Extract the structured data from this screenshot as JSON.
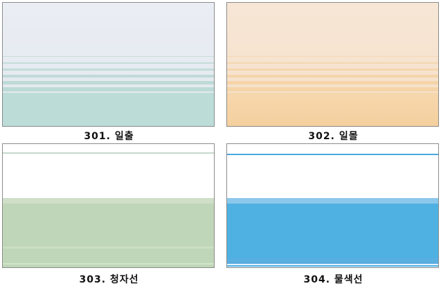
{
  "swatches": [
    {
      "label": "301. 일출",
      "top_color": "#e6ecf2",
      "bottom_color": "#bcdcd8"
    },
    {
      "label": "302. 일몰",
      "top_color": "#f6e4d0",
      "bottom_color": "#f5d3a5"
    },
    {
      "label": "303. 청자선",
      "top_color": "#ffffff",
      "bottom_color": "#c0d6b8"
    },
    {
      "label": "304. 물색선",
      "top_color": "#ffffff",
      "bottom_color": "#4fb0e2"
    }
  ]
}
